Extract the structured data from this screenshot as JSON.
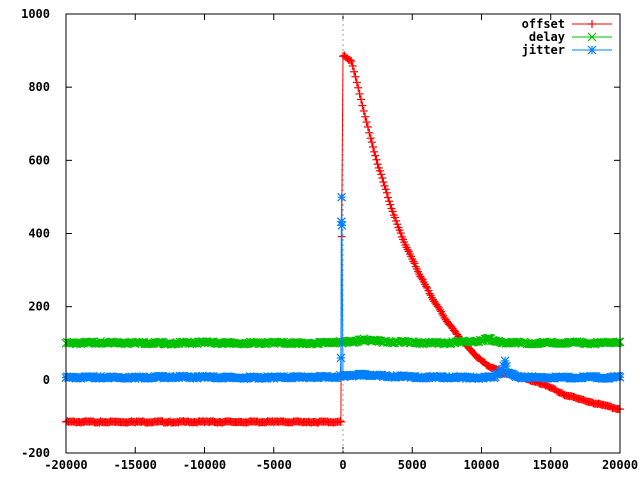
{
  "chart_data": {
    "type": "line",
    "title": "",
    "xlabel": "",
    "ylabel": "",
    "xlim": [
      -20000,
      20000
    ],
    "ylim": [
      -200,
      1000
    ],
    "x_ticks": [
      -20000,
      -15000,
      -10000,
      -5000,
      0,
      5000,
      10000,
      15000,
      20000
    ],
    "y_ticks": [
      -200,
      0,
      200,
      400,
      600,
      800,
      1000
    ],
    "x_tick_labels": [
      "-20000",
      "-15000",
      "-10000",
      "-5000",
      "0",
      "5000",
      "10000",
      "15000",
      "20000"
    ],
    "y_tick_labels": [
      "-200",
      "0",
      "200",
      "400",
      "600",
      "800",
      "1000"
    ],
    "vertical_reference_line": 0,
    "grid": false,
    "legend_position": "top-right",
    "series": [
      {
        "name": "offset",
        "color": "#ff0000",
        "marker": "plus",
        "x": [
          -20000,
          -17500,
          -15000,
          -12500,
          -10000,
          -7500,
          -5000,
          -2500,
          -500,
          -200,
          -150,
          -100,
          0,
          100,
          300,
          600,
          900,
          1200,
          1600,
          2000,
          2500,
          3000,
          3500,
          4000,
          4500,
          5000,
          5500,
          6000,
          6500,
          7000,
          7500,
          8000,
          8500,
          9000,
          9500,
          10000,
          10500,
          11000,
          11500,
          12000,
          12500,
          13000,
          14000,
          15000,
          16000,
          17000,
          18000,
          19000,
          20000
        ],
        "y": [
          -115,
          -115,
          -115,
          -115,
          -115,
          -115,
          -115,
          -115,
          -115,
          -115,
          -115,
          390,
          885,
          885,
          880,
          870,
          830,
          780,
          720,
          660,
          590,
          530,
          470,
          415,
          370,
          330,
          290,
          255,
          220,
          190,
          160,
          135,
          112,
          90,
          70,
          52,
          38,
          28,
          20,
          15,
          10,
          5,
          -5,
          -22,
          -40,
          -52,
          -62,
          -72,
          -80
        ]
      },
      {
        "name": "delay",
        "color": "#00c000",
        "marker": "cross",
        "x": [
          -20000,
          -17500,
          -15000,
          -12500,
          -10000,
          -7500,
          -5000,
          -2500,
          -500,
          -150,
          0,
          500,
          1000,
          1500,
          2000,
          3000,
          4000,
          5000,
          6000,
          7000,
          8000,
          9000,
          10000,
          10500,
          11000,
          11500,
          12000,
          13000,
          14000,
          15000,
          16000,
          17000,
          18000,
          19000,
          20000
        ],
        "y": [
          100,
          102,
          101,
          100,
          102,
          100,
          101,
          100,
          103,
          102,
          102,
          104,
          105,
          110,
          108,
          104,
          103,
          102,
          101,
          100,
          102,
          104,
          108,
          112,
          108,
          100,
          102,
          101,
          100,
          101,
          100,
          102,
          100,
          101,
          104
        ]
      },
      {
        "name": "jitter",
        "color": "#0080ff",
        "marker": "star",
        "x": [
          -20000,
          -17500,
          -15000,
          -12500,
          -10000,
          -7500,
          -5000,
          -2500,
          -400,
          -200,
          -150,
          -120,
          -100,
          -80,
          0,
          500,
          1000,
          1500,
          2000,
          3000,
          4000,
          5000,
          6000,
          7000,
          8000,
          9000,
          10000,
          11000,
          11500,
          11700,
          11900,
          12500,
          13000,
          14000,
          15000,
          16000,
          17000,
          18000,
          19000,
          20000
        ],
        "y": [
          6,
          7,
          6,
          8,
          7,
          6,
          6,
          8,
          8,
          10,
          60,
          430,
          500,
          420,
          12,
          10,
          14,
          13,
          12,
          10,
          9,
          8,
          7,
          7,
          7,
          6,
          6,
          8,
          30,
          50,
          20,
          8,
          7,
          6,
          7,
          6,
          6,
          7,
          6,
          7
        ]
      }
    ]
  }
}
